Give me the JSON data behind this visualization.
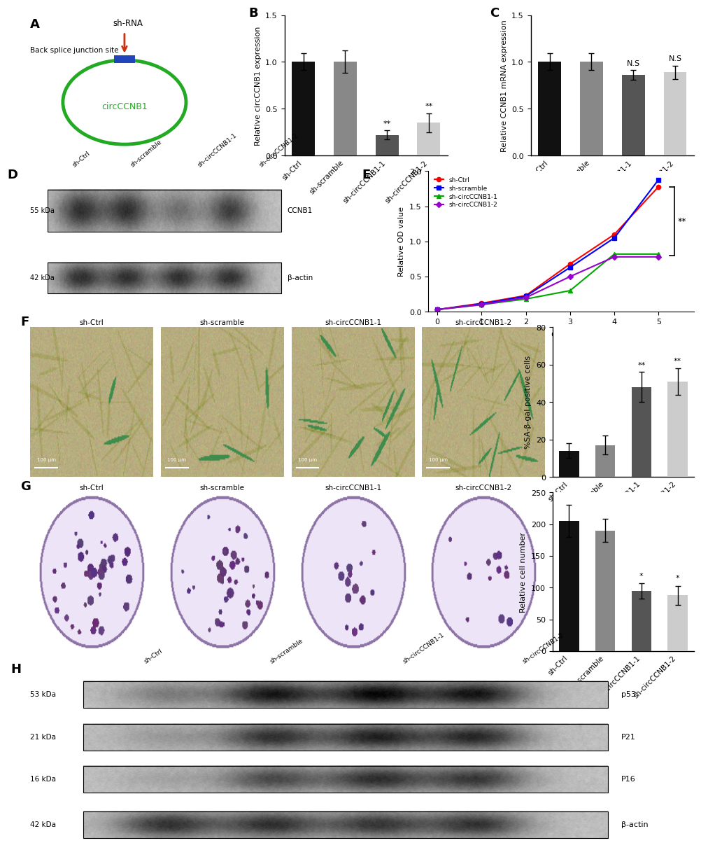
{
  "panel_B": {
    "categories": [
      "sh-Ctrl",
      "sh-scramble",
      "sh-circCCNB1-1",
      "sh-circCCNB1-2"
    ],
    "values": [
      1.0,
      1.0,
      0.22,
      0.35
    ],
    "errors": [
      0.09,
      0.12,
      0.05,
      0.1
    ],
    "colors": [
      "#111111",
      "#888888",
      "#555555",
      "#cccccc"
    ],
    "ylabel": "Relative circCCNB1 expression",
    "ylim": [
      0,
      1.5
    ],
    "yticks": [
      0.0,
      0.5,
      1.0,
      1.5
    ],
    "sig_labels": [
      "",
      "",
      "**",
      "**"
    ]
  },
  "panel_C": {
    "categories": [
      "sh-Ctrl",
      "sh-scramble",
      "sh-circCCNB1-1",
      "sh-circCCNB1-2"
    ],
    "values": [
      1.0,
      1.0,
      0.86,
      0.89
    ],
    "errors": [
      0.09,
      0.09,
      0.05,
      0.07
    ],
    "colors": [
      "#111111",
      "#888888",
      "#555555",
      "#cccccc"
    ],
    "ylabel": "Relative CCNB1 mRNA expression",
    "ylim": [
      0,
      1.5
    ],
    "yticks": [
      0.0,
      0.5,
      1.0,
      1.5
    ],
    "sig_labels": [
      "",
      "",
      "N.S",
      "N.S"
    ]
  },
  "panel_E": {
    "days": [
      0,
      1,
      2,
      3,
      4,
      5
    ],
    "series": {
      "sh-Ctrl": [
        0.03,
        0.12,
        0.23,
        0.68,
        1.1,
        1.78
      ],
      "sh-scramble": [
        0.03,
        0.11,
        0.22,
        0.63,
        1.05,
        1.88
      ],
      "sh-circCCNB1-1": [
        0.03,
        0.1,
        0.18,
        0.3,
        0.82,
        0.82
      ],
      "sh-circCCNB1-2": [
        0.03,
        0.1,
        0.2,
        0.5,
        0.78,
        0.78
      ]
    },
    "colors": {
      "sh-Ctrl": "#FF0000",
      "sh-scramble": "#0000FF",
      "sh-circCCNB1-1": "#00AA00",
      "sh-circCCNB1-2": "#9900CC"
    },
    "markers": {
      "sh-Ctrl": "o",
      "sh-scramble": "s",
      "sh-circCCNB1-1": "^",
      "sh-circCCNB1-2": "D"
    },
    "ylabel": "Relative OD value",
    "xlabel": "days",
    "ylim": [
      0,
      2.0
    ],
    "yticks": [
      0.0,
      0.5,
      1.0,
      1.5,
      2.0
    ]
  },
  "panel_F_bar": {
    "categories": [
      "sh-Ctrl",
      "sh-scramble",
      "sh-circCCNB1-1",
      "sh-circCCNB1-2"
    ],
    "values": [
      14,
      17,
      48,
      51
    ],
    "errors": [
      4,
      5,
      8,
      7
    ],
    "colors": [
      "#111111",
      "#888888",
      "#555555",
      "#cccccc"
    ],
    "ylabel": "%SA-β-gal positive cells",
    "ylim": [
      0,
      80
    ],
    "yticks": [
      0,
      20,
      40,
      60,
      80
    ],
    "sig_labels": [
      "",
      "",
      "**",
      "**"
    ]
  },
  "panel_G_bar": {
    "categories": [
      "sh-Ctrl",
      "sh-scramble",
      "sh-circCCNB1-1",
      "sh-circCCNB1-2"
    ],
    "values": [
      205,
      190,
      95,
      88
    ],
    "errors": [
      25,
      18,
      12,
      15
    ],
    "colors": [
      "#111111",
      "#888888",
      "#555555",
      "#cccccc"
    ],
    "ylabel": "Relative cell number",
    "ylim": [
      0,
      250
    ],
    "yticks": [
      0,
      50,
      100,
      150,
      200,
      250
    ],
    "sig_labels": [
      "",
      "",
      "*",
      "*"
    ]
  },
  "figure_bg": "#ffffff",
  "wb_bg": "#aaaaaa",
  "panel_labels": [
    "A",
    "B",
    "C",
    "D",
    "E",
    "F",
    "G",
    "H"
  ]
}
